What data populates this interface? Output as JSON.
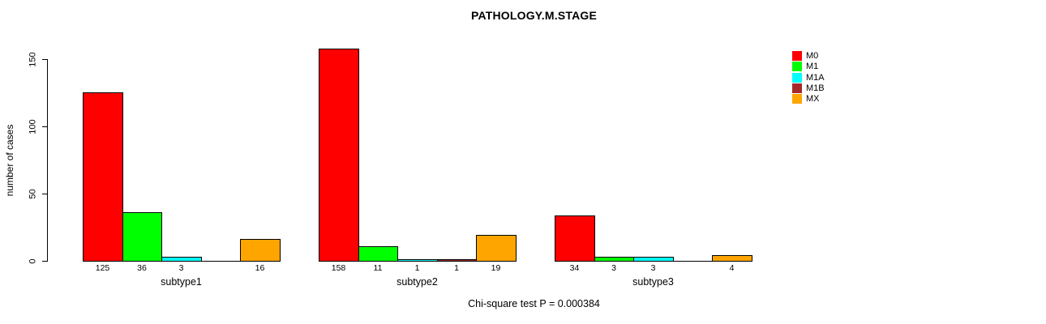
{
  "chart_data": {
    "type": "bar",
    "title": "PATHOLOGY.M.STAGE",
    "ylabel": "number of cases",
    "xlabel": "",
    "ylim": [
      0,
      150
    ],
    "yticks": [
      "0",
      "50",
      "100",
      "150"
    ],
    "grid": false,
    "legend_position": "top-right",
    "categories": [
      "subtype1",
      "subtype2",
      "subtype3"
    ],
    "series": [
      {
        "name": "M0",
        "color": "#FF0000",
        "values": [
          125,
          158,
          34
        ]
      },
      {
        "name": "M1",
        "color": "#00FF00",
        "values": [
          36,
          11,
          3
        ]
      },
      {
        "name": "M1A",
        "color": "#00FFFF",
        "values": [
          3,
          1,
          3
        ]
      },
      {
        "name": "M1B",
        "color": "#A52A2A",
        "values": [
          0,
          1,
          0
        ]
      },
      {
        "name": "MX",
        "color": "#FFA500",
        "values": [
          16,
          19,
          4
        ]
      }
    ],
    "bar_value_labels": [
      [
        "125",
        "36",
        "3",
        "",
        "16"
      ],
      [
        "158",
        "11",
        "1",
        "1",
        "19"
      ],
      [
        "34",
        "3",
        "3",
        "",
        "4"
      ]
    ],
    "annotation": "Chi-square test P = 0.000384"
  }
}
